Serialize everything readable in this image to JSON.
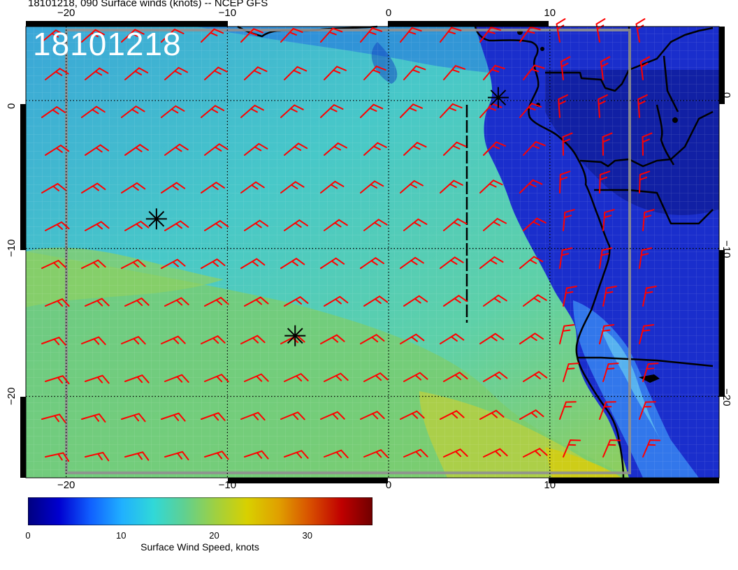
{
  "title": "18101218, 090 Surface winds (knots) -- NCEP GFS",
  "timestamp_label": "18101218",
  "map": {
    "lon_range": [
      -22.5,
      20.5
    ],
    "lat_range": [
      -25.5,
      5
    ],
    "lon_ticks_top": [
      {
        "lon": -20,
        "label": "−20"
      },
      {
        "lon": -10,
        "label": "−10"
      },
      {
        "lon": 0,
        "label": "0"
      },
      {
        "lon": 10,
        "label": "10"
      }
    ],
    "lon_ticks_bottom": [
      {
        "lon": -20,
        "label": "−20"
      },
      {
        "lon": -10,
        "label": "−10"
      },
      {
        "lon": 0,
        "label": "0"
      },
      {
        "lon": 10,
        "label": "10"
      }
    ],
    "lat_ticks_left": [
      {
        "lat": 0,
        "label": "0"
      },
      {
        "lat": -10,
        "label": "−10"
      },
      {
        "lat": -20,
        "label": "−20"
      }
    ],
    "lat_ticks_right": [
      {
        "lat": 0,
        "label": "0"
      },
      {
        "lat": -10,
        "label": "−10"
      },
      {
        "lat": -20,
        "label": "−20"
      }
    ],
    "markers": [
      {
        "lon": -14.4,
        "lat": -8.0,
        "symbol": "asterisk"
      },
      {
        "lon": -5.8,
        "lat": -15.9,
        "symbol": "asterisk"
      },
      {
        "lon": 6.8,
        "lat": 0.2,
        "symbol": "asterisk"
      }
    ],
    "wind_barb_color": "#ff0000"
  },
  "colorbar": {
    "label": "Surface Wind Speed, knots",
    "ticks": [
      {
        "value": 0,
        "label": "0"
      },
      {
        "value": 10,
        "label": "10"
      },
      {
        "value": 20,
        "label": "20"
      },
      {
        "value": 30,
        "label": "30"
      }
    ],
    "range": [
      0,
      37
    ],
    "colors": [
      "#000080",
      "#0000d0",
      "#1060ff",
      "#20b0ff",
      "#30d8d8",
      "#60d090",
      "#a0d040",
      "#d8d000",
      "#e0a000",
      "#d85000",
      "#c00000",
      "#700000"
    ]
  }
}
